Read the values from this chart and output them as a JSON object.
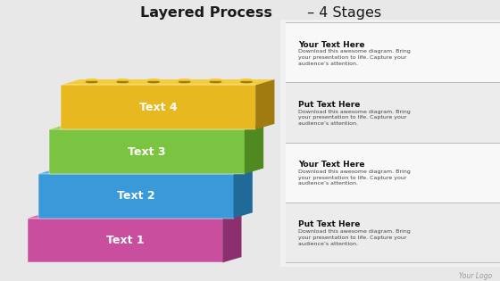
{
  "title_bold": "Layered Process",
  "title_suffix": " – 4 Stages",
  "background_color": "#e8e8e8",
  "right_bg_color": "#f5f5f5",
  "stages": [
    {
      "label": "Text 1",
      "color_main": "#c94f9e",
      "color_dark": "#8b2f6e",
      "color_top": "#d966b0",
      "heading": "Put Text Here",
      "body": "Download this awesome diagram. Bring\nyour presentation to life. Capture your\naudience’s attention."
    },
    {
      "label": "Text 2",
      "color_main": "#3a9ad9",
      "color_dark": "#1f6a99",
      "color_top": "#55b0e8",
      "heading": "Your Text Here",
      "body": "Download this awesome diagram. Bring\nyour presentation to life. Capture your\naudience’s attention."
    },
    {
      "label": "Text 3",
      "color_main": "#7bc442",
      "color_dark": "#4e8a20",
      "color_top": "#96d455",
      "heading": "Put Text Here",
      "body": "Download this awesome diagram. Bring\nyour presentation to life. Capture your\naudience’s attention."
    },
    {
      "label": "Text 4",
      "color_main": "#e8b820",
      "color_dark": "#a07c10",
      "color_top": "#f5cc3a",
      "heading": "Your Text Here",
      "body": "Download this awesome diagram. Bring\nyour presentation to life. Capture your\naudience’s attention."
    }
  ],
  "logo_text": "Your Logo",
  "divider_color": "#bbbbbb"
}
